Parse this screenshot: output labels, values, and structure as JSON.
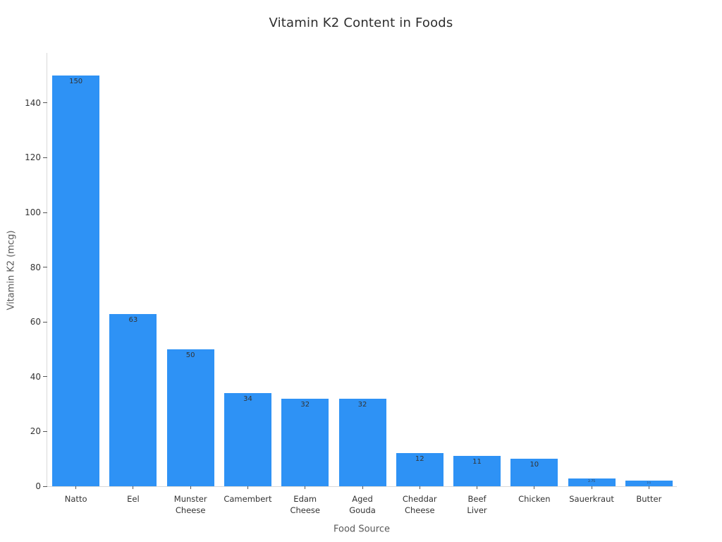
{
  "chart_data": {
    "type": "bar",
    "title": "Vitamin K2 Content in Foods",
    "xlabel": "Food Source",
    "ylabel": "Vitamin K2 (mcg)",
    "categories": [
      "Natto",
      "Eel",
      "Munster\nCheese",
      "Camembert",
      "Edam\nCheese",
      "Aged\nGouda",
      "Cheddar\nCheese",
      "Beef\nLiver",
      "Chicken",
      "Sauerkraut",
      "Butter"
    ],
    "values": [
      150,
      63,
      50,
      34,
      32,
      32,
      12,
      11,
      10,
      2.75,
      2.1
    ],
    "bar_labels": [
      "150",
      "63",
      "50",
      "34",
      "32",
      "32",
      "12",
      "11",
      "10",
      "2.75",
      "2.1"
    ],
    "ylim": [
      0,
      158.5
    ],
    "yticks": [
      0,
      20,
      40,
      60,
      80,
      100,
      120,
      140
    ],
    "grid": false,
    "legend": false,
    "bar_color": "#2e92f5",
    "label_color": "#333333"
  }
}
